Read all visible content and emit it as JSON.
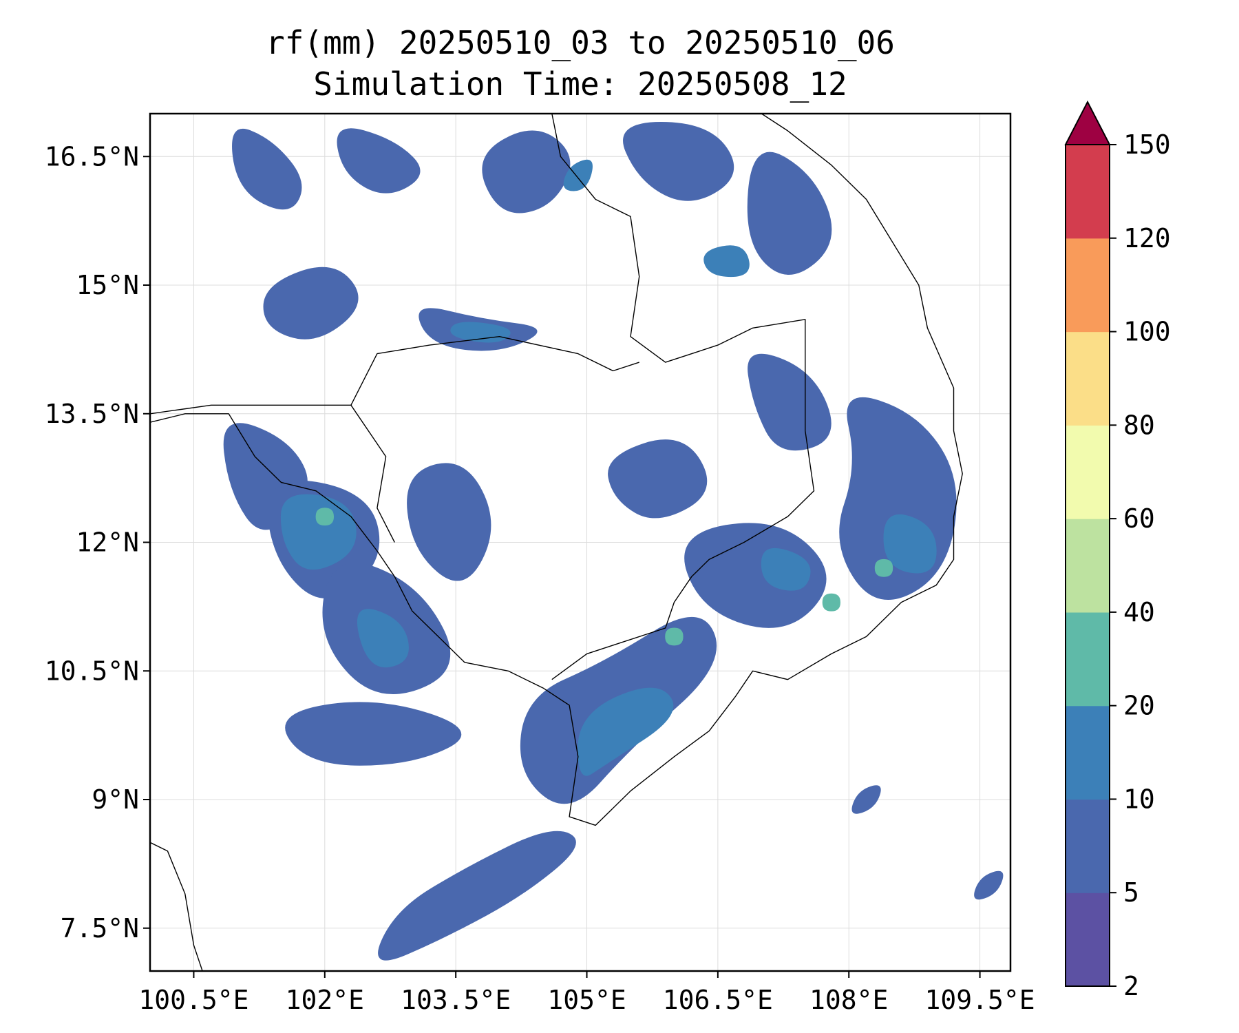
{
  "title": {
    "line1": "rf(mm) 20250510_03 to 20250510_06",
    "line2": "Simulation Time: 20250508_12"
  },
  "map": {
    "lon_range": [
      100.0,
      109.85
    ],
    "lat_range": [
      7.0,
      17.0
    ],
    "lon_ticks": [
      100.5,
      102,
      103.5,
      105,
      106.5,
      108,
      109.5
    ],
    "lon_tick_labels": [
      "100.5°E",
      "102°E",
      "103.5°E",
      "105°E",
      "106.5°E",
      "108°E",
      "109.5°E"
    ],
    "lat_ticks": [
      16.5,
      15,
      13.5,
      12,
      10.5,
      9,
      7.5
    ],
    "lat_tick_labels": [
      "16.5°N",
      "15°N",
      "13.5°N",
      "12°N",
      "10.5°N",
      "9°N",
      "7.5°N"
    ],
    "grid": true,
    "coastline_color": "#000000"
  },
  "colorbar": {
    "levels": [
      2,
      5,
      10,
      20,
      40,
      60,
      80,
      100,
      120,
      150
    ],
    "tick_labels": [
      "2",
      "5",
      "10",
      "20",
      "40",
      "60",
      "80",
      "100",
      "120",
      "150"
    ],
    "colors": [
      "#5c51a3",
      "#4a68ae",
      "#3c80b8",
      "#5fbaa8",
      "#bde2a0",
      "#f2fbae",
      "#fbde88",
      "#f99b5a",
      "#d33d4e"
    ],
    "extend_color": "#9e0142",
    "extend": "max"
  },
  "rain_bands": [
    {
      "level": 1,
      "path": [
        [
          100.9,
          16.9
        ],
        [
          101.4,
          16.7
        ],
        [
          101.8,
          16.2
        ],
        [
          101.6,
          15.8
        ],
        [
          101.0,
          16.1
        ]
      ]
    },
    {
      "level": 1,
      "path": [
        [
          102.1,
          16.9
        ],
        [
          102.8,
          16.7
        ],
        [
          103.2,
          16.3
        ],
        [
          102.7,
          16.0
        ],
        [
          102.2,
          16.3
        ]
      ]
    },
    {
      "level": 1,
      "path": [
        [
          103.7,
          16.5
        ],
        [
          104.4,
          16.9
        ],
        [
          104.9,
          16.5
        ],
        [
          104.6,
          15.9
        ],
        [
          104.0,
          15.8
        ]
      ]
    },
    {
      "level": 1,
      "path": [
        [
          105.3,
          16.9
        ],
        [
          106.4,
          16.9
        ],
        [
          106.8,
          16.3
        ],
        [
          106.2,
          15.9
        ],
        [
          105.6,
          16.2
        ]
      ]
    },
    {
      "level": 1,
      "path": [
        [
          106.9,
          16.7
        ],
        [
          107.6,
          16.3
        ],
        [
          107.9,
          15.5
        ],
        [
          107.3,
          15.0
        ],
        [
          106.8,
          15.5
        ]
      ]
    },
    {
      "level": 1,
      "path": [
        [
          101.3,
          15.0
        ],
        [
          102.1,
          15.3
        ],
        [
          102.5,
          14.8
        ],
        [
          101.9,
          14.3
        ],
        [
          101.3,
          14.5
        ]
      ]
    },
    {
      "level": 1,
      "path": [
        [
          103.0,
          14.8
        ],
        [
          103.8,
          14.6
        ],
        [
          104.6,
          14.5
        ],
        [
          104.0,
          14.2
        ],
        [
          103.2,
          14.3
        ]
      ]
    },
    {
      "level": 1,
      "path": [
        [
          100.8,
          13.5
        ],
        [
          101.6,
          13.2
        ],
        [
          101.9,
          12.6
        ],
        [
          101.3,
          12.0
        ],
        [
          100.9,
          12.6
        ]
      ]
    },
    {
      "level": 1,
      "path": [
        [
          101.3,
          12.8
        ],
        [
          102.5,
          12.6
        ],
        [
          102.7,
          11.8
        ],
        [
          102.0,
          11.2
        ],
        [
          101.4,
          11.8
        ]
      ]
    },
    {
      "level": 1,
      "path": [
        [
          102.1,
          11.9
        ],
        [
          103.1,
          11.5
        ],
        [
          103.6,
          10.5
        ],
        [
          102.6,
          10.1
        ],
        [
          101.9,
          10.9
        ]
      ]
    },
    {
      "level": 1,
      "path": [
        [
          101.4,
          10.0
        ],
        [
          102.6,
          10.2
        ],
        [
          103.8,
          9.8
        ],
        [
          103.0,
          9.4
        ],
        [
          101.8,
          9.4
        ]
      ]
    },
    {
      "level": 1,
      "path": [
        [
          102.9,
          12.8
        ],
        [
          103.6,
          13.0
        ],
        [
          104.0,
          12.2
        ],
        [
          103.6,
          11.4
        ],
        [
          103.0,
          11.9
        ]
      ]
    },
    {
      "level": 1,
      "path": [
        [
          104.3,
          10.2
        ],
        [
          105.2,
          10.6
        ],
        [
          106.3,
          11.3
        ],
        [
          106.6,
          10.6
        ],
        [
          105.5,
          9.6
        ],
        [
          104.8,
          8.8
        ],
        [
          104.2,
          9.3
        ]
      ]
    },
    {
      "level": 1,
      "path": [
        [
          105.2,
          13.0
        ],
        [
          106.1,
          13.3
        ],
        [
          106.5,
          12.6
        ],
        [
          105.8,
          12.2
        ],
        [
          105.3,
          12.5
        ]
      ]
    },
    {
      "level": 1,
      "path": [
        [
          106.0,
          12.1
        ],
        [
          107.2,
          12.3
        ],
        [
          107.9,
          11.6
        ],
        [
          107.3,
          10.9
        ],
        [
          106.3,
          11.2
        ]
      ]
    },
    {
      "level": 1,
      "path": [
        [
          106.8,
          14.3
        ],
        [
          107.6,
          14.0
        ],
        [
          107.9,
          13.2
        ],
        [
          107.2,
          13.0
        ],
        [
          106.9,
          13.6
        ]
      ]
    },
    {
      "level": 1,
      "path": [
        [
          107.9,
          13.8
        ],
        [
          108.8,
          13.5
        ],
        [
          109.3,
          12.7
        ],
        [
          109.1,
          11.6
        ],
        [
          108.3,
          11.2
        ],
        [
          107.8,
          12.0
        ],
        [
          108.1,
          12.9
        ]
      ]
    },
    {
      "level": 1,
      "path": [
        [
          102.5,
          7.0
        ],
        [
          103.4,
          7.4
        ],
        [
          104.3,
          7.9
        ],
        [
          105.0,
          8.5
        ],
        [
          104.6,
          8.7
        ],
        [
          103.6,
          8.2
        ],
        [
          102.8,
          7.7
        ]
      ]
    },
    {
      "level": 1,
      "path": [
        [
          108.1,
          9.1
        ],
        [
          108.4,
          9.2
        ],
        [
          108.3,
          8.9
        ],
        [
          108.0,
          8.8
        ]
      ]
    },
    {
      "level": 1,
      "path": [
        [
          109.5,
          8.1
        ],
        [
          109.8,
          8.2
        ],
        [
          109.7,
          7.9
        ],
        [
          109.4,
          7.8
        ]
      ]
    },
    {
      "level": 2,
      "path": [
        [
          101.5,
          12.6
        ],
        [
          102.3,
          12.5
        ],
        [
          102.4,
          11.9
        ],
        [
          101.8,
          11.6
        ],
        [
          101.5,
          12.0
        ]
      ]
    },
    {
      "level": 2,
      "path": [
        [
          102.3,
          11.3
        ],
        [
          102.9,
          11.1
        ],
        [
          103.0,
          10.6
        ],
        [
          102.5,
          10.5
        ]
      ]
    },
    {
      "level": 2,
      "path": [
        [
          103.5,
          14.6
        ],
        [
          104.2,
          14.5
        ],
        [
          104.0,
          14.3
        ],
        [
          103.4,
          14.4
        ]
      ]
    },
    {
      "level": 2,
      "path": [
        [
          104.9,
          10.0
        ],
        [
          105.8,
          10.4
        ],
        [
          106.1,
          10.0
        ],
        [
          105.2,
          9.4
        ],
        [
          104.9,
          9.2
        ]
      ]
    },
    {
      "level": 2,
      "path": [
        [
          107.0,
          12.0
        ],
        [
          107.6,
          11.8
        ],
        [
          107.5,
          11.4
        ],
        [
          107.0,
          11.5
        ]
      ]
    },
    {
      "level": 2,
      "path": [
        [
          108.4,
          12.4
        ],
        [
          109.0,
          12.2
        ],
        [
          109.0,
          11.6
        ],
        [
          108.4,
          11.7
        ]
      ]
    },
    {
      "level": 2,
      "path": [
        [
          106.3,
          15.4
        ],
        [
          106.8,
          15.5
        ],
        [
          106.9,
          15.1
        ],
        [
          106.4,
          15.1
        ]
      ]
    },
    {
      "level": 2,
      "path": [
        [
          104.8,
          16.4
        ],
        [
          105.1,
          16.5
        ],
        [
          105.0,
          16.1
        ],
        [
          104.7,
          16.1
        ]
      ]
    },
    {
      "level": 3,
      "path": [
        [
          101.9,
          12.4
        ],
        [
          102.1,
          12.4
        ],
        [
          102.1,
          12.2
        ],
        [
          101.9,
          12.2
        ]
      ]
    },
    {
      "level": 3,
      "path": [
        [
          105.9,
          11.0
        ],
        [
          106.1,
          11.0
        ],
        [
          106.1,
          10.8
        ],
        [
          105.9,
          10.8
        ]
      ]
    },
    {
      "level": 3,
      "path": [
        [
          108.3,
          11.8
        ],
        [
          108.5,
          11.8
        ],
        [
          108.5,
          11.6
        ],
        [
          108.3,
          11.6
        ]
      ]
    },
    {
      "level": 3,
      "path": [
        [
          107.7,
          11.4
        ],
        [
          107.9,
          11.4
        ],
        [
          107.9,
          11.2
        ],
        [
          107.7,
          11.2
        ]
      ]
    }
  ],
  "coastlines": [
    [
      [
        100.0,
        13.4
      ],
      [
        100.4,
        13.5
      ],
      [
        100.9,
        13.5
      ],
      [
        101.2,
        13.0
      ],
      [
        101.5,
        12.7
      ],
      [
        101.9,
        12.6
      ],
      [
        102.3,
        12.3
      ],
      [
        102.6,
        11.9
      ],
      [
        102.8,
        11.6
      ],
      [
        103.0,
        11.2
      ],
      [
        103.3,
        10.9
      ],
      [
        103.6,
        10.6
      ],
      [
        104.1,
        10.5
      ],
      [
        104.5,
        10.3
      ],
      [
        104.8,
        10.1
      ],
      [
        104.9,
        9.5
      ],
      [
        104.8,
        8.8
      ],
      [
        105.1,
        8.7
      ],
      [
        105.5,
        9.1
      ],
      [
        106.0,
        9.5
      ],
      [
        106.4,
        9.8
      ],
      [
        106.7,
        10.2
      ],
      [
        106.9,
        10.5
      ],
      [
        107.3,
        10.4
      ],
      [
        107.8,
        10.7
      ],
      [
        108.2,
        10.9
      ],
      [
        108.6,
        11.3
      ],
      [
        109.0,
        11.5
      ],
      [
        109.2,
        11.8
      ],
      [
        109.2,
        12.3
      ],
      [
        109.3,
        12.8
      ],
      [
        109.2,
        13.3
      ],
      [
        109.2,
        13.8
      ],
      [
        108.9,
        14.5
      ],
      [
        108.8,
        15.0
      ],
      [
        108.5,
        15.5
      ],
      [
        108.2,
        16.0
      ],
      [
        107.8,
        16.4
      ],
      [
        107.3,
        16.8
      ],
      [
        107.0,
        17.0
      ]
    ],
    [
      [
        100.0,
        8.5
      ],
      [
        100.2,
        8.4
      ],
      [
        100.4,
        7.9
      ],
      [
        100.5,
        7.3
      ],
      [
        100.6,
        7.0
      ]
    ]
  ],
  "borders": [
    [
      [
        104.6,
        17.0
      ],
      [
        104.7,
        16.5
      ],
      [
        105.1,
        16.0
      ],
      [
        105.5,
        15.8
      ],
      [
        105.6,
        15.1
      ],
      [
        105.5,
        14.4
      ],
      [
        105.9,
        14.1
      ],
      [
        106.5,
        14.3
      ],
      [
        106.9,
        14.5
      ],
      [
        107.5,
        14.6
      ],
      [
        107.5,
        14.0
      ],
      [
        107.5,
        13.3
      ],
      [
        107.6,
        12.6
      ],
      [
        107.3,
        12.3
      ],
      [
        106.8,
        12.0
      ],
      [
        106.4,
        11.8
      ],
      [
        106.2,
        11.6
      ],
      [
        106.0,
        11.3
      ],
      [
        105.9,
        11.0
      ],
      [
        105.3,
        10.8
      ],
      [
        105.0,
        10.7
      ],
      [
        104.6,
        10.4
      ]
    ],
    [
      [
        100.0,
        13.5
      ],
      [
        100.7,
        13.6
      ],
      [
        101.6,
        13.6
      ],
      [
        102.3,
        13.6
      ],
      [
        102.6,
        14.2
      ],
      [
        103.2,
        14.3
      ],
      [
        104.0,
        14.4
      ],
      [
        104.9,
        14.2
      ],
      [
        105.3,
        14.0
      ],
      [
        105.6,
        14.1
      ]
    ],
    [
      [
        102.3,
        13.6
      ],
      [
        102.7,
        13.0
      ],
      [
        102.6,
        12.4
      ],
      [
        102.8,
        12.0
      ]
    ]
  ]
}
